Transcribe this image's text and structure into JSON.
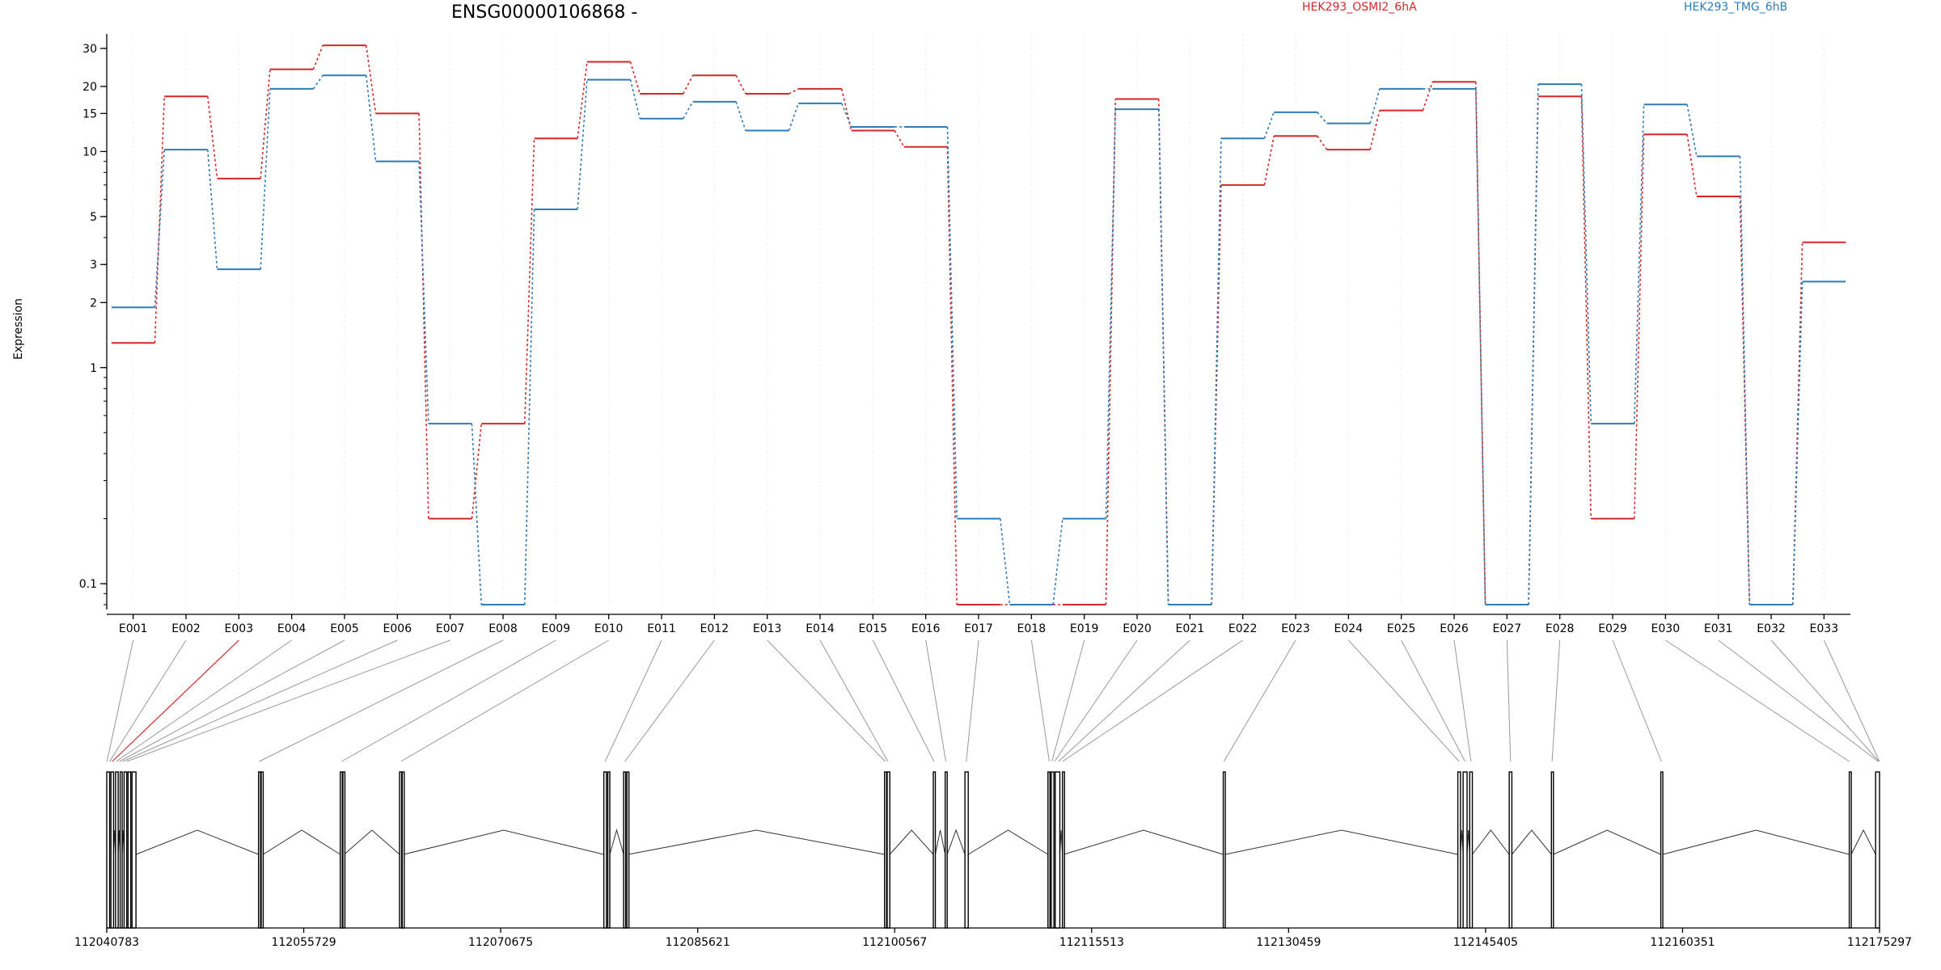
{
  "chart_data": {
    "type": "line",
    "title": "ENSG00000106868 -",
    "ylabel": "Expression",
    "yscale": "log",
    "ylim": [
      0.08,
      35
    ],
    "ytick_labels": [
      "0.1",
      "1",
      "2",
      "3",
      "5",
      "10",
      "15",
      "20",
      "30"
    ],
    "grid": false,
    "legend_position": "top",
    "categories": [
      "E001",
      "E002",
      "E003",
      "E004",
      "E005",
      "E006",
      "E007",
      "E008",
      "E009",
      "E010",
      "E011",
      "E012",
      "E013",
      "E014",
      "E015",
      "E016",
      "E017",
      "E018",
      "E019",
      "E020",
      "E021",
      "E022",
      "E023",
      "E024",
      "E025",
      "E026",
      "E027",
      "E028",
      "E029",
      "E030",
      "E031",
      "E032",
      "E033"
    ],
    "series": [
      {
        "name": "HEK293_OSMI2_6hA",
        "color": "#d62728",
        "values": [
          1.3,
          18,
          7.5,
          24,
          31,
          15,
          0.2,
          0.55,
          11.5,
          26,
          18.5,
          22.5,
          18.5,
          19.5,
          12.5,
          10.5,
          0.08,
          0.08,
          0.08,
          17.5,
          0.08,
          7,
          11.8,
          10.2,
          15.5,
          21,
          0.08,
          18,
          0.2,
          12,
          6.2,
          0.08,
          3.8
        ]
      },
      {
        "name": "HEK293_TMG_6hB",
        "color": "#2e7bb6",
        "values": [
          1.9,
          10.2,
          2.85,
          19.5,
          22.5,
          9,
          0.55,
          0.08,
          5.4,
          21.5,
          14.2,
          17,
          12.5,
          16.7,
          13,
          13,
          0.2,
          0.08,
          0.2,
          15.7,
          0.08,
          11.5,
          15.2,
          13.5,
          19.5,
          19.5,
          0.08,
          20.5,
          0.55,
          16.5,
          9.5,
          0.08,
          2.5
        ]
      }
    ],
    "gene_model": {
      "coordinate_ticks": [
        "112040783",
        "112055729",
        "112070675",
        "112085621",
        "112100567",
        "112115513",
        "112130459",
        "112145405",
        "112160351",
        "112175297"
      ],
      "exon_genomic_starts": [
        112040783,
        112041100,
        112041450,
        112041800,
        112042100,
        112042400,
        112042700,
        112052300,
        112052500,
        112058500,
        112058700,
        112063000,
        112063200,
        112078500,
        112078800,
        112080000,
        112080250,
        112099800,
        112100000,
        112103500,
        112104400,
        112105900,
        112112200,
        112112450,
        112112750,
        112113300,
        112125500,
        112143300,
        112143700,
        112144200,
        112147200,
        112150400,
        112158700,
        112173000,
        112175000
      ],
      "exon_genomic_ends": [
        112041000,
        112041300,
        112041650,
        112041950,
        112042300,
        112042600,
        112043000,
        112052450,
        112052650,
        112058650,
        112058800,
        112063150,
        112063300,
        112078700,
        112078950,
        112080150,
        112080350,
        112099950,
        112100200,
        112103650,
        112104550,
        112106150,
        112112350,
        112112650,
        112113100,
        112113400,
        112125650,
        112143500,
        112144000,
        112144400,
        112147400,
        112150550,
        112158850,
        112173150,
        112175297
      ],
      "bin_anchor_genomic": [
        112040800,
        112041000,
        112041200,
        112041500,
        112041750,
        112042000,
        112042300,
        112052350,
        112058600,
        112063100,
        112078600,
        112080100,
        112099850,
        112100050,
        112103550,
        112104450,
        112106000,
        112112300,
        112112500,
        112112700,
        112113000,
        112113300,
        112125550,
        112143400,
        112143850,
        112144300,
        112147300,
        112150450,
        112158750,
        112173000,
        112175200,
        112175250,
        112175290
      ],
      "highlighted_bin": "E003",
      "highlight_color": "#d62728"
    }
  }
}
